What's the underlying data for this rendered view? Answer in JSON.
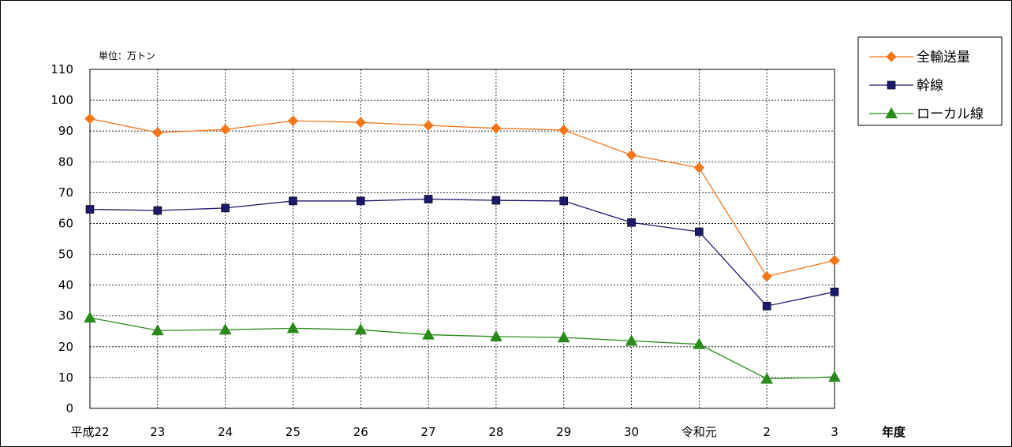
{
  "chart_data": {
    "type": "line",
    "unit_label": "単位：万トン",
    "xlabel": "年度",
    "ylabel": "",
    "ylim": [
      0,
      110
    ],
    "y_ticks": [
      0,
      10,
      20,
      30,
      40,
      50,
      60,
      70,
      80,
      90,
      100,
      110
    ],
    "grid": true,
    "legend_position": "top-right",
    "categories": [
      "平成22",
      "23",
      "24",
      "25",
      "26",
      "27",
      "28",
      "29",
      "30",
      "令和元",
      "2",
      "3"
    ],
    "series": [
      {
        "name": "全輸送量",
        "color": "#F4761B",
        "marker": "diamond",
        "values": [
          94.0,
          89.5,
          90.5,
          93.3,
          92.8,
          91.8,
          90.9,
          90.3,
          82.2,
          78.1,
          42.8,
          48.0
        ]
      },
      {
        "name": "幹線",
        "color": "#1C1A6B",
        "marker": "square",
        "values": [
          64.6,
          64.2,
          65.0,
          67.3,
          67.3,
          67.9,
          67.5,
          67.3,
          60.3,
          57.3,
          33.2,
          37.8
        ]
      },
      {
        "name": "ローカル線",
        "color": "#2A8A1C",
        "marker": "triangle",
        "values": [
          29.4,
          25.3,
          25.5,
          26.0,
          25.5,
          23.9,
          23.3,
          23.0,
          21.9,
          20.8,
          9.6,
          10.2
        ]
      }
    ]
  }
}
